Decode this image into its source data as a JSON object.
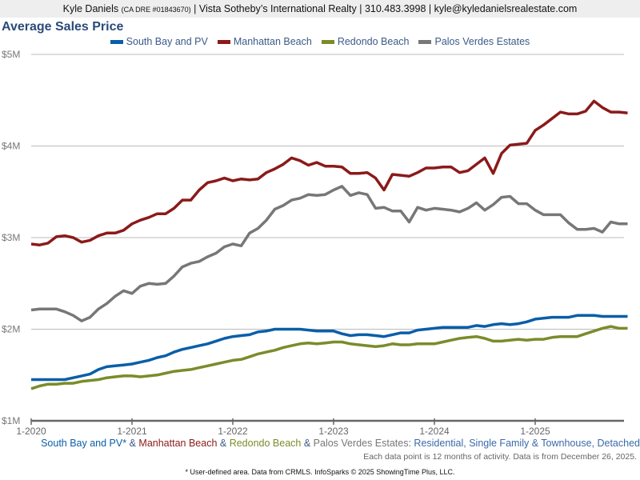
{
  "header": {
    "name": "Kyle Daniels",
    "license": "(CA DRE #01843670)",
    "rest": "| Vista Sotheby’s International Realty | 310.483.3998 | kyle@kyledanielsrealestate.com"
  },
  "subtitle": {
    "s1": "South Bay and PV*",
    "amp1": " & ",
    "s2": "Manhattan Beach",
    "amp2": " & ",
    "s3": "Redondo Beach",
    "amp3": " & ",
    "s4": "Palos Verdes Estates",
    "rest": ": Residential, Single Family & Townhouse, Detached"
  },
  "note": "Each data point is 12 months of activity. Data is from December 26, 2025.",
  "footer": "* User-defined area. Data from CRMLS. InfoSparks © 2025 ShowingTime Plus, LLC.",
  "chart_data": {
    "type": "line",
    "title": "Average Sales Price",
    "xlabel": "",
    "ylabel": "",
    "x_start": "1-2020",
    "x_interval": "month",
    "x_ticks": [
      "1-2020",
      "1-2021",
      "1-2022",
      "1-2023",
      "1-2024",
      "1-2025"
    ],
    "y_ticks": [
      "$1M",
      "$2M",
      "$3M",
      "$4M",
      "$5M"
    ],
    "y_tick_values": [
      1,
      2,
      3,
      4,
      5
    ],
    "ylim": [
      1,
      5
    ],
    "grid": true,
    "legend": "top",
    "series": [
      {
        "name": "South Bay and PV",
        "color": "#0a5ea8",
        "values": [
          1.45,
          1.45,
          1.45,
          1.45,
          1.45,
          1.47,
          1.49,
          1.51,
          1.56,
          1.59,
          1.6,
          1.61,
          1.62,
          1.64,
          1.66,
          1.69,
          1.71,
          1.75,
          1.78,
          1.8,
          1.82,
          1.84,
          1.87,
          1.9,
          1.92,
          1.93,
          1.94,
          1.97,
          1.98,
          2.0,
          2.0,
          2.0,
          2.0,
          1.99,
          1.98,
          1.98,
          1.98,
          1.95,
          1.93,
          1.94,
          1.94,
          1.93,
          1.92,
          1.94,
          1.96,
          1.96,
          1.99,
          2.0,
          2.01,
          2.02,
          2.02,
          2.02,
          2.02,
          2.04,
          2.03,
          2.05,
          2.06,
          2.05,
          2.06,
          2.08,
          2.11,
          2.12,
          2.13,
          2.13,
          2.13,
          2.15,
          2.15,
          2.15,
          2.14,
          2.14,
          2.14,
          2.14
        ]
      },
      {
        "name": "Manhattan Beach",
        "color": "#8b1a1a",
        "values": [
          2.93,
          2.92,
          2.94,
          3.01,
          3.02,
          3.0,
          2.95,
          2.97,
          3.02,
          3.05,
          3.05,
          3.08,
          3.15,
          3.19,
          3.22,
          3.26,
          3.26,
          3.32,
          3.41,
          3.41,
          3.52,
          3.6,
          3.62,
          3.65,
          3.62,
          3.64,
          3.63,
          3.64,
          3.71,
          3.75,
          3.8,
          3.87,
          3.84,
          3.79,
          3.82,
          3.78,
          3.78,
          3.77,
          3.7,
          3.7,
          3.71,
          3.65,
          3.52,
          3.69,
          3.68,
          3.67,
          3.71,
          3.76,
          3.76,
          3.77,
          3.77,
          3.71,
          3.73,
          3.8,
          3.87,
          3.7,
          3.92,
          4.01,
          4.02,
          4.03,
          4.17,
          4.23,
          4.3,
          4.37,
          4.35,
          4.35,
          4.38,
          4.49,
          4.42,
          4.37,
          4.37,
          4.36
        ]
      },
      {
        "name": "Redondo Beach",
        "color": "#7a8c2a",
        "values": [
          1.35,
          1.38,
          1.4,
          1.4,
          1.41,
          1.41,
          1.43,
          1.44,
          1.45,
          1.47,
          1.48,
          1.49,
          1.49,
          1.48,
          1.49,
          1.5,
          1.52,
          1.54,
          1.55,
          1.56,
          1.58,
          1.6,
          1.62,
          1.64,
          1.66,
          1.67,
          1.7,
          1.73,
          1.75,
          1.77,
          1.8,
          1.82,
          1.84,
          1.85,
          1.84,
          1.85,
          1.86,
          1.86,
          1.84,
          1.83,
          1.82,
          1.81,
          1.82,
          1.84,
          1.83,
          1.83,
          1.84,
          1.84,
          1.84,
          1.86,
          1.88,
          1.9,
          1.91,
          1.92,
          1.9,
          1.87,
          1.87,
          1.88,
          1.89,
          1.88,
          1.89,
          1.89,
          1.91,
          1.92,
          1.92,
          1.92,
          1.95,
          1.98,
          2.01,
          2.03,
          2.01,
          2.01
        ]
      },
      {
        "name": "Palos Verdes Estates",
        "color": "#777777",
        "values": [
          2.21,
          2.22,
          2.22,
          2.22,
          2.19,
          2.15,
          2.09,
          2.13,
          2.22,
          2.28,
          2.36,
          2.42,
          2.39,
          2.47,
          2.5,
          2.49,
          2.5,
          2.58,
          2.68,
          2.72,
          2.74,
          2.79,
          2.83,
          2.9,
          2.93,
          2.91,
          3.05,
          3.1,
          3.19,
          3.31,
          3.35,
          3.41,
          3.43,
          3.47,
          3.46,
          3.47,
          3.52,
          3.56,
          3.46,
          3.49,
          3.47,
          3.32,
          3.33,
          3.29,
          3.29,
          3.17,
          3.33,
          3.3,
          3.32,
          3.31,
          3.3,
          3.28,
          3.32,
          3.38,
          3.3,
          3.36,
          3.44,
          3.45,
          3.37,
          3.37,
          3.3,
          3.25,
          3.25,
          3.25,
          3.16,
          3.09,
          3.09,
          3.1,
          3.06,
          3.17,
          3.15,
          3.15
        ]
      }
    ]
  }
}
